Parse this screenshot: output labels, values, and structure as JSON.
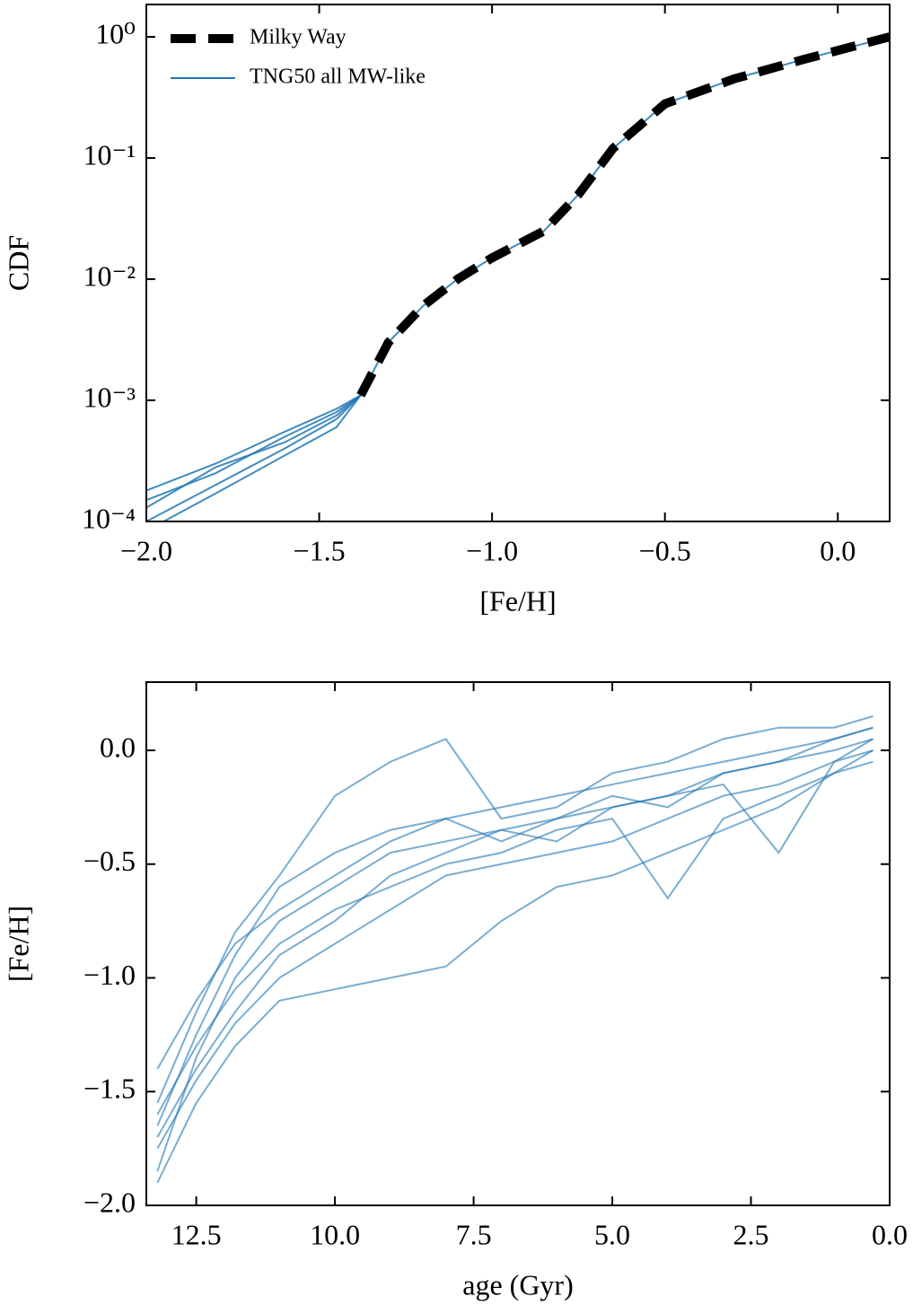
{
  "chart_data": [
    {
      "type": "line",
      "xlabel": "[Fe/H]",
      "ylabel": "CDF",
      "yscale": "log",
      "legend": "upper left",
      "xlim": [
        -2.0,
        0.15
      ],
      "ylim": [
        0.0001,
        1.85
      ],
      "xticks": [
        {
          "value": -2.0,
          "label": "−2.0"
        },
        {
          "value": -1.5,
          "label": "−1.5"
        },
        {
          "value": -1.0,
          "label": "−1.0"
        },
        {
          "value": -0.5,
          "label": "−0.5"
        },
        {
          "value": 0.0,
          "label": "0.0"
        }
      ],
      "yticks": [
        {
          "value": 0.0001,
          "label": "10⁻⁴"
        },
        {
          "value": 0.001,
          "label": "10⁻³"
        },
        {
          "value": 0.01,
          "label": "10⁻²"
        },
        {
          "value": 0.1,
          "label": "10⁻¹"
        },
        {
          "value": 1,
          "label": "10⁰"
        }
      ],
      "series": [
        {
          "name": "Milky Way",
          "color": "#000000",
          "style": "dashed",
          "x": [
            -1.38,
            -1.3,
            -1.2,
            -1.1,
            -1.0,
            -0.85,
            -0.75,
            -0.65,
            -0.5,
            -0.3,
            -0.1,
            0.15
          ],
          "values": [
            0.0011,
            0.003,
            0.006,
            0.01,
            0.015,
            0.025,
            0.05,
            0.12,
            0.28,
            0.45,
            0.65,
            1.0
          ]
        },
        {
          "name": "TNG50 all MW-like",
          "color": "#1f77b4",
          "x": [
            -2.0,
            -1.8,
            -1.6,
            -1.45,
            -1.38,
            -1.3,
            -1.2,
            -1.1,
            -1.0,
            -0.85,
            -0.75,
            -0.65,
            -0.5,
            -0.3,
            -0.1,
            0.15
          ],
          "values": [
            0.00015,
            0.00025,
            0.0005,
            0.0008,
            0.0011,
            0.003,
            0.006,
            0.01,
            0.015,
            0.025,
            0.05,
            0.12,
            0.28,
            0.45,
            0.65,
            1.0
          ]
        },
        {
          "color": "#1f77b4",
          "x": [
            -2.0,
            -1.8,
            -1.6,
            -1.45,
            -1.38
          ],
          "values": [
            0.0001,
            0.0002,
            0.0004,
            0.0007,
            0.0011
          ]
        },
        {
          "color": "#1f77b4",
          "x": [
            -2.0,
            -1.8,
            -1.6,
            -1.45,
            -1.38
          ],
          "values": [
            0.00018,
            0.0003,
            0.00055,
            0.00085,
            0.0011
          ]
        },
        {
          "color": "#1f77b4",
          "x": [
            -1.95,
            -1.8,
            -1.6,
            -1.45,
            -1.38
          ],
          "values": [
            0.0001,
            0.00017,
            0.00035,
            0.0006,
            0.0011
          ]
        },
        {
          "color": "#1f77b4",
          "x": [
            -2.0,
            -1.8,
            -1.6,
            -1.45,
            -1.38
          ],
          "values": [
            0.00013,
            0.00028,
            0.00045,
            0.00075,
            0.0011
          ]
        }
      ]
    },
    {
      "type": "line",
      "xlabel": "age (Gyr)",
      "ylabel": "[Fe/H]",
      "xlim": [
        13.4,
        0.0
      ],
      "ylim": [
        -2.0,
        0.3
      ],
      "xticks": [
        12.5,
        {
          "value": 10.0,
          "label": "10.0"
        },
        7.5,
        {
          "value": 5.0,
          "label": "5.0"
        },
        2.5,
        {
          "value": 0.0,
          "label": "0.0"
        }
      ],
      "yticks": [
        {
          "value": 0.0,
          "label": "0.0"
        },
        {
          "value": -0.5,
          "label": "−0.5"
        },
        {
          "value": -1.0,
          "label": "−1.0"
        },
        {
          "value": -1.5,
          "label": "−1.5"
        },
        {
          "value": -2.0,
          "label": "−2.0"
        }
      ],
      "series": [
        {
          "color": "#1f77b4",
          "x": [
            13.2,
            12.5,
            11.8,
            11,
            10,
            9,
            8,
            7,
            6,
            5,
            4,
            3,
            2,
            1,
            0.3
          ],
          "values": [
            -1.85,
            -1.35,
            -1.0,
            -0.75,
            -0.6,
            -0.45,
            -0.4,
            -0.35,
            -0.3,
            -0.25,
            -0.2,
            -0.1,
            -0.05,
            0.0,
            0.05
          ]
        },
        {
          "color": "#1f77b4",
          "x": [
            13.2,
            12.5,
            11.8,
            11,
            10,
            9,
            8,
            7,
            6,
            5,
            4,
            3,
            2,
            1,
            0.3
          ],
          "values": [
            -1.65,
            -1.25,
            -0.9,
            -0.6,
            -0.45,
            -0.35,
            -0.3,
            -0.25,
            -0.2,
            -0.15,
            -0.1,
            -0.05,
            0.0,
            0.05,
            0.1
          ]
        },
        {
          "color": "#1f77b4",
          "x": [
            13.2,
            12.5,
            11.8,
            11,
            10,
            9,
            8,
            7,
            6,
            5,
            4,
            3,
            2,
            1,
            0.3
          ],
          "values": [
            -1.75,
            -1.45,
            -1.2,
            -1.0,
            -0.85,
            -0.7,
            -0.55,
            -0.5,
            -0.45,
            -0.4,
            -0.3,
            -0.2,
            -0.15,
            -0.05,
            0.0
          ]
        },
        {
          "color": "#1f77b4",
          "x": [
            13.2,
            12.5,
            11.8,
            11,
            10,
            9,
            8,
            7,
            6,
            5,
            4,
            3,
            2,
            1,
            0.3
          ],
          "values": [
            -1.55,
            -1.15,
            -0.8,
            -0.55,
            -0.2,
            -0.05,
            0.05,
            -0.3,
            -0.25,
            -0.1,
            -0.05,
            0.05,
            0.1,
            0.1,
            0.15
          ]
        },
        {
          "color": "#1f77b4",
          "x": [
            13.2,
            12.5,
            11.8,
            11,
            10,
            9,
            8,
            7,
            6,
            5,
            4,
            3,
            2,
            1,
            0.3
          ],
          "values": [
            -1.9,
            -1.55,
            -1.3,
            -1.1,
            -1.05,
            -1.0,
            -0.95,
            -0.75,
            -0.6,
            -0.55,
            -0.45,
            -0.35,
            -0.25,
            -0.1,
            -0.05
          ]
        },
        {
          "color": "#1f77b4",
          "x": [
            13.2,
            12.5,
            11.8,
            11,
            10,
            9,
            8,
            7,
            6,
            5,
            4,
            3,
            2,
            1,
            0.3
          ],
          "values": [
            -1.4,
            -1.1,
            -0.85,
            -0.7,
            -0.55,
            -0.4,
            -0.3,
            -0.4,
            -0.3,
            -0.2,
            -0.25,
            -0.1,
            -0.05,
            0.05,
            0.1
          ]
        },
        {
          "color": "#1f77b4",
          "x": [
            13.2,
            12.5,
            11.8,
            11,
            10,
            9,
            8,
            7,
            6,
            5,
            4,
            3,
            2,
            1,
            0.3
          ],
          "values": [
            -1.6,
            -1.3,
            -1.05,
            -0.85,
            -0.7,
            -0.6,
            -0.5,
            -0.45,
            -0.35,
            -0.3,
            -0.65,
            -0.3,
            -0.2,
            -0.1,
            0.0
          ]
        },
        {
          "color": "#1f77b4",
          "x": [
            13.2,
            12.5,
            11.8,
            11,
            10,
            9,
            8,
            7,
            6,
            5,
            4,
            3,
            2,
            1,
            0.3
          ],
          "values": [
            -1.7,
            -1.4,
            -1.15,
            -0.9,
            -0.75,
            -0.55,
            -0.45,
            -0.35,
            -0.4,
            -0.25,
            -0.2,
            -0.15,
            -0.45,
            -0.05,
            0.05
          ]
        }
      ]
    }
  ]
}
